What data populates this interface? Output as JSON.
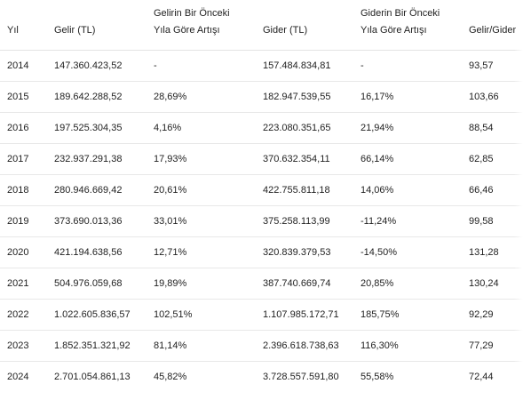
{
  "table": {
    "headers": [
      {
        "line1": "",
        "line2": "Yıl"
      },
      {
        "line1": "",
        "line2": "Gelir (TL)"
      },
      {
        "line1": "Gelirin Bir Önceki",
        "line2": "Yıla Göre Artışı"
      },
      {
        "line1": "",
        "line2": "Gider (TL)"
      },
      {
        "line1": "Giderin Bir Önceki",
        "line2": "Yıla Göre Artışı"
      },
      {
        "line1": "",
        "line2": "Gelir/Gider"
      }
    ],
    "rows": [
      [
        "2014",
        "147.360.423,52",
        "-",
        "157.484.834,81",
        "-",
        "93,57"
      ],
      [
        "2015",
        "189.642.288,52",
        "28,69%",
        "182.947.539,55",
        "16,17%",
        "103,66"
      ],
      [
        "2016",
        "197.525.304,35",
        "4,16%",
        "223.080.351,65",
        "21,94%",
        "88,54"
      ],
      [
        "2017",
        "232.937.291,38",
        "17,93%",
        "370.632.354,11",
        "66,14%",
        "62,85"
      ],
      [
        "2018",
        "280.946.669,42",
        "20,61%",
        "422.755.811,18",
        "14,06%",
        "66,46"
      ],
      [
        "2019",
        "373.690.013,36",
        "33,01%",
        "375.258.113,99",
        "-11,24%",
        "99,58"
      ],
      [
        "2020",
        "421.194.638,56",
        "12,71%",
        "320.839.379,53",
        "-14,50%",
        "131,28"
      ],
      [
        "2021",
        "504.976.059,68",
        "19,89%",
        "387.740.669,74",
        "20,85%",
        "130,24"
      ],
      [
        "2022",
        "1.022.605.836,57",
        "102,51%",
        "1.107.985.172,71",
        "185,75%",
        "92,29"
      ],
      [
        "2023",
        "1.852.351.321,92",
        "81,14%",
        "2.396.618.738,63",
        "116,30%",
        "77,29"
      ],
      [
        "2024",
        "2.701.054.861,13",
        "45,82%",
        "3.728.557.591,80",
        "55,58%",
        "72,44"
      ]
    ]
  }
}
